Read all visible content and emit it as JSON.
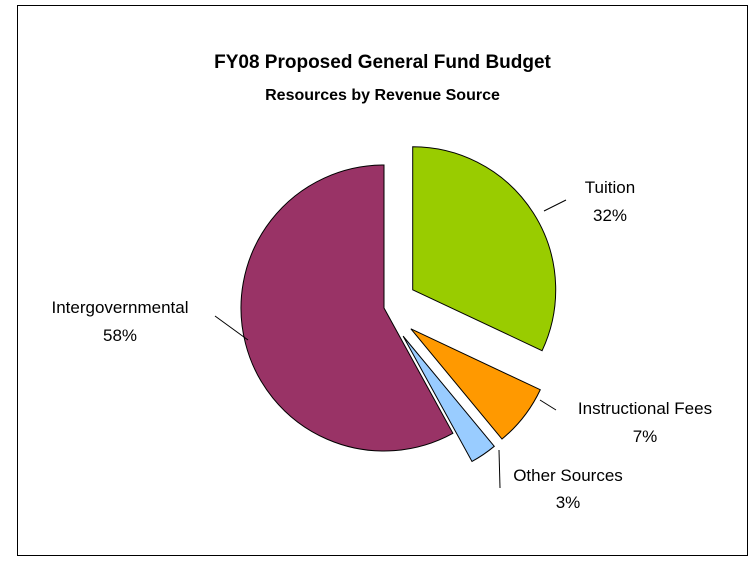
{
  "chart_data": {
    "type": "pie",
    "title": "FY08 Proposed General Fund Budget",
    "subtitle": "Resources by Revenue Source",
    "slices": [
      {
        "name": "Tuition",
        "value": 32,
        "value_label": "32%",
        "color": "#99cc00",
        "exploded": true
      },
      {
        "name": "Instructional Fees",
        "value": 7,
        "value_label": "7%",
        "color": "#ff9900",
        "exploded": true
      },
      {
        "name": "Other Sources",
        "value": 3,
        "value_label": "3%",
        "color": "#99ccff",
        "exploded": true
      },
      {
        "name": "Intergovernmental",
        "value": 58,
        "value_label": "58%",
        "color": "#993366",
        "exploded": false
      }
    ],
    "legend": "none"
  }
}
